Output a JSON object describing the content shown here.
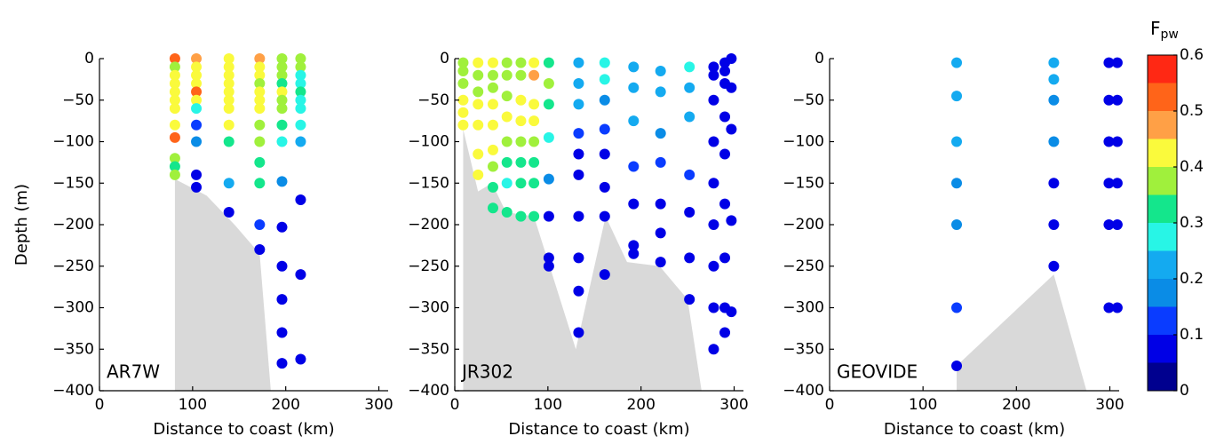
{
  "chart_data": [
    {
      "type": "scatter",
      "label": "AR7W",
      "xlabel": "Distance to coast (km)",
      "ylabel": "Depth (m)",
      "xlim": [
        0,
        310
      ],
      "ylim": [
        -400,
        0
      ],
      "xticks": [
        0,
        100,
        200,
        300
      ],
      "yticks": [
        {
          "value": -400,
          "label": "−400"
        },
        {
          "value": -350,
          "label": "−350"
        },
        {
          "value": -300,
          "label": "−300"
        },
        {
          "value": -250,
          "label": "−250"
        },
        {
          "value": -200,
          "label": "−200"
        },
        {
          "value": -150,
          "label": "−150"
        },
        {
          "value": -100,
          "label": "−100"
        },
        {
          "value": -50,
          "label": "−50"
        },
        0
      ],
      "bathymetry": {
        "color": "#d9d9d9",
        "x": [
          81,
          81,
          115,
          145,
          172,
          184
        ],
        "y": [
          -400,
          -145,
          -165,
          -200,
          -235,
          -400
        ]
      },
      "stations": [
        {
          "x": 81,
          "depth": [
            0,
            -10,
            -20,
            -30,
            -40,
            -50,
            -60,
            -80,
            -95,
            -120,
            -130,
            -140
          ],
          "c": [
            0.5,
            0.38,
            0.42,
            0.42,
            0.42,
            0.42,
            0.42,
            0.42,
            0.5,
            0.38,
            0.32,
            0.38
          ]
        },
        {
          "x": 104,
          "depth": [
            0,
            -10,
            -20,
            -30,
            -40,
            -50,
            -60,
            -80,
            -100,
            -140,
            -155
          ],
          "c": [
            0.45,
            0.42,
            0.42,
            0.42,
            0.5,
            0.42,
            0.28,
            0.12,
            0.17,
            0.05,
            0.05
          ]
        },
        {
          "x": 139,
          "depth": [
            0,
            -10,
            -20,
            -30,
            -40,
            -50,
            -60,
            -80,
            -100,
            -150,
            -185
          ],
          "c": [
            0.42,
            0.42,
            0.42,
            0.42,
            0.42,
            0.42,
            0.42,
            0.42,
            0.32,
            0.22,
            0.05
          ]
        },
        {
          "x": 172,
          "depth": [
            0,
            -10,
            -20,
            -30,
            -40,
            -50,
            -60,
            -80,
            -100,
            -125,
            -150,
            -200,
            -230
          ],
          "c": [
            0.45,
            0.42,
            0.42,
            0.38,
            0.42,
            0.42,
            0.42,
            0.38,
            0.38,
            0.3,
            0.3,
            0.12,
            0.05
          ]
        },
        {
          "x": 196,
          "depth": [
            0,
            -10,
            -20,
            -30,
            -40,
            -50,
            -60,
            -80,
            -100,
            -148,
            -203,
            -250,
            -290,
            -330,
            -367
          ],
          "c": [
            0.38,
            0.38,
            0.38,
            0.32,
            0.42,
            0.38,
            0.38,
            0.32,
            0.28,
            0.17,
            0.07,
            0.07,
            0.05,
            0.05,
            0.05
          ]
        },
        {
          "x": 216,
          "depth": [
            0,
            -10,
            -20,
            -30,
            -40,
            -50,
            -60,
            -80,
            -100,
            -170,
            -260,
            -362
          ],
          "c": [
            0.38,
            0.38,
            0.28,
            0.28,
            0.3,
            0.28,
            0.28,
            0.28,
            0.22,
            0.05,
            0.05,
            0.05
          ]
        }
      ]
    },
    {
      "type": "scatter",
      "label": "JR302",
      "xlabel": "Distance to coast (km)",
      "xlim": [
        0,
        310
      ],
      "ylim": [
        -400,
        0
      ],
      "xticks": [
        0,
        100,
        200,
        300
      ],
      "yticks": [
        {
          "value": -400,
          "label": "−400"
        },
        {
          "value": -350,
          "label": "−350"
        },
        {
          "value": -300,
          "label": "−300"
        },
        {
          "value": -250,
          "label": "−250"
        },
        {
          "value": -200,
          "label": "−200"
        },
        {
          "value": -150,
          "label": "−150"
        },
        {
          "value": -100,
          "label": "−100"
        },
        {
          "value": -50,
          "label": "−50"
        },
        0
      ],
      "bathymetry": {
        "color": "#d9d9d9",
        "x": [
          9,
          9,
          25,
          40,
          55,
          85,
          130,
          162,
          185,
          220,
          250,
          265
        ],
        "y": [
          -400,
          -85,
          -160,
          -150,
          -185,
          -190,
          -350,
          -190,
          -245,
          -250,
          -290,
          -400
        ]
      },
      "stations": [
        {
          "x": 9,
          "depth": [
            -5,
            -15,
            -30,
            -50,
            -65,
            -80
          ],
          "c": [
            0.38,
            0.38,
            0.38,
            0.42,
            0.42,
            0.42
          ]
        },
        {
          "x": 25,
          "depth": [
            -5,
            -20,
            -40,
            -55,
            -80,
            -115,
            -140
          ],
          "c": [
            0.42,
            0.38,
            0.38,
            0.42,
            0.42,
            0.42,
            0.42
          ]
        },
        {
          "x": 41,
          "depth": [
            -5,
            -20,
            -35,
            -55,
            -80,
            -110,
            -130,
            -155,
            -180
          ],
          "c": [
            0.42,
            0.38,
            0.38,
            0.42,
            0.42,
            0.42,
            0.38,
            0.32,
            0.32
          ]
        },
        {
          "x": 56,
          "depth": [
            -5,
            -20,
            -45,
            -70,
            -100,
            -125,
            -150,
            -185
          ],
          "c": [
            0.38,
            0.38,
            0.38,
            0.42,
            0.38,
            0.32,
            0.28,
            0.3
          ]
        },
        {
          "x": 71,
          "depth": [
            -5,
            -20,
            -50,
            -75,
            -100,
            -125,
            -150,
            -190
          ],
          "c": [
            0.38,
            0.38,
            0.42,
            0.42,
            0.38,
            0.32,
            0.32,
            0.3
          ]
        },
        {
          "x": 85,
          "depth": [
            -5,
            -20,
            -55,
            -75,
            -100,
            -125,
            -150,
            -190
          ],
          "c": [
            0.42,
            0.45,
            0.42,
            0.42,
            0.38,
            0.32,
            0.3,
            0.3
          ]
        },
        {
          "x": 101,
          "depth": [
            -5,
            -30,
            -55,
            -95,
            -145,
            -190,
            -240,
            -250
          ],
          "c": [
            0.3,
            0.35,
            0.32,
            0.28,
            0.17,
            0.05,
            0.05,
            0.07
          ]
        },
        {
          "x": 133,
          "depth": [
            -5,
            -30,
            -55,
            -90,
            -115,
            -140,
            -190,
            -240,
            -280,
            -330
          ],
          "c": [
            0.22,
            0.22,
            0.22,
            0.12,
            0.05,
            0.05,
            0.05,
            0.05,
            0.05,
            0.05
          ]
        },
        {
          "x": 161,
          "depth": [
            -5,
            -25,
            -50,
            -85,
            -115,
            -155,
            -190,
            -260
          ],
          "c": [
            0.28,
            0.28,
            0.17,
            0.12,
            0.07,
            0.05,
            0.05,
            0.05
          ]
        },
        {
          "x": 192,
          "depth": [
            -10,
            -35,
            -75,
            -130,
            -175,
            -225,
            -235
          ],
          "c": [
            0.22,
            0.22,
            0.22,
            0.12,
            0.05,
            0.05,
            0.05
          ]
        },
        {
          "x": 221,
          "depth": [
            -15,
            -40,
            -90,
            -125,
            -175,
            -210,
            -245
          ],
          "c": [
            0.22,
            0.22,
            0.17,
            0.12,
            0.05,
            0.05,
            0.05
          ]
        },
        {
          "x": 252,
          "depth": [
            -10,
            -35,
            -70,
            -140,
            -185,
            -240,
            -290
          ],
          "c": [
            0.28,
            0.22,
            0.22,
            0.12,
            0.05,
            0.05,
            0.05
          ]
        },
        {
          "x": 278,
          "depth": [
            -10,
            -20,
            -50,
            -100,
            -150,
            -200,
            -250,
            -300,
            -350
          ],
          "c": [
            0.05,
            0.05,
            0.05,
            0.05,
            0.05,
            0.05,
            0.05,
            0.05,
            0.05
          ]
        },
        {
          "x": 290,
          "depth": [
            -5,
            -15,
            -30,
            -70,
            -115,
            -175,
            -240,
            -300,
            -330
          ],
          "c": [
            0.05,
            0.05,
            0.05,
            0.05,
            0.05,
            0.05,
            0.05,
            0.05,
            0.05
          ]
        },
        {
          "x": 297,
          "depth": [
            0,
            -35,
            -85,
            -195,
            -305
          ],
          "c": [
            0.05,
            0.05,
            0.05,
            0.05,
            0.05
          ]
        }
      ]
    },
    {
      "type": "scatter",
      "label": "GEOVIDE",
      "xlabel": "Distance to coast (km)",
      "xlim": [
        0,
        310
      ],
      "ylim": [
        -400,
        0
      ],
      "xticks": [
        0,
        100,
        200,
        300
      ],
      "yticks": [
        {
          "value": -400,
          "label": "−400"
        },
        {
          "value": -350,
          "label": "−350"
        },
        {
          "value": -300,
          "label": "−300"
        },
        {
          "value": -250,
          "label": "−250"
        },
        {
          "value": -200,
          "label": "−200"
        },
        {
          "value": -150,
          "label": "−150"
        },
        {
          "value": -100,
          "label": "−100"
        },
        {
          "value": -50,
          "label": "−50"
        },
        0
      ],
      "bathymetry": {
        "color": "#d9d9d9",
        "x": [
          136,
          136,
          240,
          275
        ],
        "y": [
          -400,
          -370,
          -260,
          -400
        ]
      },
      "stations": [
        {
          "x": 136,
          "depth": [
            -5,
            -45,
            -100,
            -150,
            -200,
            -300,
            -370
          ],
          "c": [
            0.22,
            0.22,
            0.22,
            0.17,
            0.17,
            0.12,
            0.07
          ]
        },
        {
          "x": 240,
          "depth": [
            -5,
            -25,
            -50,
            -100,
            -150,
            -200,
            -250
          ],
          "c": [
            0.22,
            0.22,
            0.17,
            0.17,
            0.07,
            0.05,
            0.05
          ]
        },
        {
          "x": 299,
          "depth": [
            -5,
            -50,
            -100,
            -150,
            -200,
            -300
          ],
          "c": [
            0.05,
            0.05,
            0.05,
            0.05,
            0.05,
            0.05
          ]
        },
        {
          "x": 308,
          "depth": [
            -5,
            -50,
            -100,
            -150,
            -200,
            -300
          ],
          "c": [
            0.05,
            0.05,
            0.05,
            0.05,
            0.05,
            0.05
          ]
        }
      ]
    }
  ],
  "colorbar": {
    "label": "F",
    "label_subscript": "pw",
    "lim": [
      0,
      0.6
    ],
    "ticks": [
      0,
      0.1,
      0.2,
      0.3,
      0.4,
      0.5,
      0.6
    ],
    "boundaries": [
      0,
      0.05,
      0.1,
      0.15,
      0.2,
      0.25,
      0.3,
      0.35,
      0.4,
      0.45,
      0.5,
      0.55,
      0.6
    ],
    "colors": [
      "#00008f",
      "#0000e6",
      "#0a3cff",
      "#0a8ce6",
      "#14aaf0",
      "#28f5e6",
      "#14e68c",
      "#a0f03c",
      "#fafa3c",
      "#ffa046",
      "#ff6419",
      "#ff2814",
      "#c80000"
    ]
  }
}
